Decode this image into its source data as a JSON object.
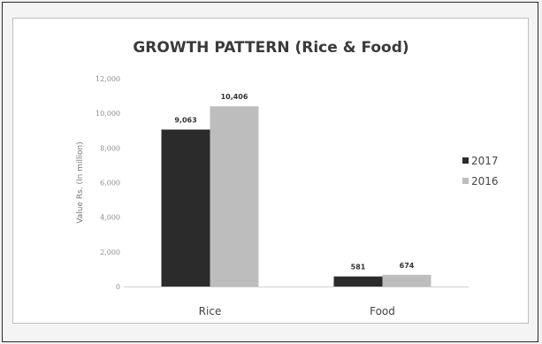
{
  "chart_data": {
    "type": "bar",
    "title": "GROWTH PATTERN (Rice & Food)",
    "xlabel": "",
    "ylabel": "Value Rs. (In million)",
    "categories": [
      "Rice",
      "Food"
    ],
    "ylim": [
      0,
      12000
    ],
    "yticks": [
      0,
      2000,
      4000,
      6000,
      8000,
      10000,
      12000
    ],
    "ytick_labels": [
      "0",
      "2,000",
      "4,000",
      "6,000",
      "8,000",
      "10,000",
      "12,000"
    ],
    "series": [
      {
        "name": "2017",
        "values": [
          9063,
          581
        ],
        "labels": [
          "9,063",
          "581"
        ],
        "color": "#2b2b2b"
      },
      {
        "name": "2016",
        "values": [
          10406,
          674
        ],
        "labels": [
          "10,406",
          "674"
        ],
        "color": "#bdbdbd"
      }
    ],
    "grid": false,
    "legend": "right"
  }
}
